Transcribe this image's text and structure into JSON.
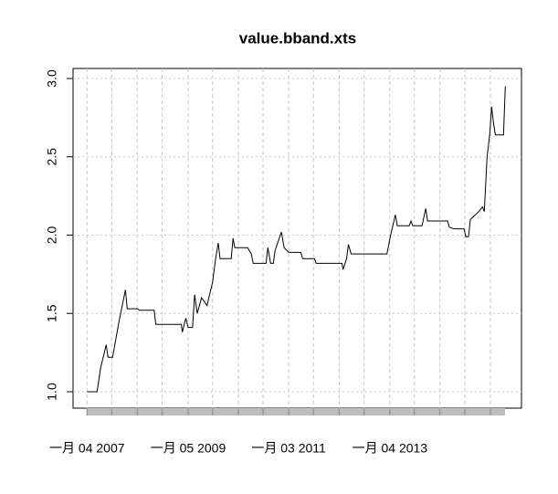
{
  "chart_data": {
    "type": "line",
    "title": "value.bband.xts",
    "x": [
      "2007-01-04",
      "2007-03-18",
      "2007-04-12",
      "2007-05-23",
      "2007-06-05",
      "2007-07-08",
      "2007-08-24",
      "2007-10-09",
      "2007-10-22",
      "2008-01-04",
      "2008-01-18",
      "2008-05-04",
      "2008-05-16",
      "2008-11-17",
      "2008-11-24",
      "2008-12-19",
      "2009-01-05",
      "2009-02-06",
      "2009-02-21",
      "2009-03-12",
      "2009-04-12",
      "2009-05-22",
      "2009-07-01",
      "2009-07-23",
      "2009-08-11",
      "2009-08-24",
      "2009-11-13",
      "2009-11-26",
      "2009-12-09",
      "2010-03-12",
      "2010-04-07",
      "2010-04-21",
      "2010-07-23",
      "2010-08-05",
      "2010-08-25",
      "2010-09-14",
      "2010-09-26",
      "2010-11-11",
      "2010-12-01",
      "2011-01-03",
      "2011-04-01",
      "2011-04-14",
      "2011-07-08",
      "2011-07-21",
      "2012-01-24",
      "2012-01-31",
      "2012-02-26",
      "2012-03-10",
      "2012-03-30",
      "2012-12-14",
      "2013-01-10",
      "2013-02-13",
      "2013-02-27",
      "2013-05-24",
      "2013-06-06",
      "2013-06-19",
      "2013-08-25",
      "2013-09-21",
      "2013-10-04",
      "2014-02-26",
      "2014-03-11",
      "2014-04-13",
      "2014-06-25",
      "2014-07-08",
      "2014-07-28",
      "2014-08-10",
      "2014-10-10",
      "2014-11-06",
      "2014-11-19",
      "2014-12-09",
      "2014-12-29",
      "2015-01-11",
      "2015-01-24",
      "2015-02-07",
      "2015-04-07",
      "2015-04-20"
    ],
    "series": [
      {
        "name": "value.bband.xts",
        "color": "#000000",
        "values": [
          1.0,
          1.0,
          1.15,
          1.3,
          1.22,
          1.22,
          1.45,
          1.65,
          1.53,
          1.53,
          1.52,
          1.52,
          1.43,
          1.43,
          1.38,
          1.47,
          1.41,
          1.41,
          1.62,
          1.5,
          1.6,
          1.55,
          1.7,
          1.85,
          1.95,
          1.85,
          1.85,
          1.98,
          1.92,
          1.92,
          1.88,
          1.82,
          1.82,
          1.92,
          1.82,
          1.82,
          1.9,
          2.02,
          1.92,
          1.89,
          1.89,
          1.85,
          1.85,
          1.82,
          1.82,
          1.78,
          1.85,
          1.94,
          1.88,
          1.88,
          2.0,
          2.13,
          2.06,
          2.06,
          2.09,
          2.06,
          2.06,
          2.17,
          2.09,
          2.09,
          2.05,
          2.04,
          2.04,
          1.99,
          1.99,
          2.1,
          2.15,
          2.18,
          2.15,
          2.5,
          2.65,
          2.82,
          2.72,
          2.64,
          2.64,
          2.95
        ]
      }
    ],
    "xlim": [
      "2006-09-25",
      "2015-08-15"
    ],
    "xticks": [
      {
        "value": "2007-01-04",
        "label": "一月 04 2007"
      },
      {
        "value": "2009-01-05",
        "label": "一月 05 2009"
      },
      {
        "value": "2011-01-03",
        "label": "一月 03 2011"
      },
      {
        "value": "2013-01-04",
        "label": "一月 04 2013"
      }
    ],
    "xgrid": [
      "2007-01-04",
      "2007-07-02",
      "2008-01-02",
      "2008-07-01",
      "2009-01-05",
      "2009-07-01",
      "2010-01-04",
      "2010-07-01",
      "2011-01-03",
      "2011-07-01",
      "2012-01-03",
      "2012-07-02",
      "2013-01-04",
      "2013-07-01",
      "2014-01-02",
      "2014-07-01",
      "2015-01-02"
    ],
    "ylim": [
      0.895,
      3.064
    ],
    "yticks": [
      {
        "value": 1,
        "label": "1.0"
      },
      1.5,
      {
        "value": 2,
        "label": "2.0"
      },
      2.5,
      {
        "value": 3,
        "label": "3.0"
      }
    ],
    "grid": true
  }
}
